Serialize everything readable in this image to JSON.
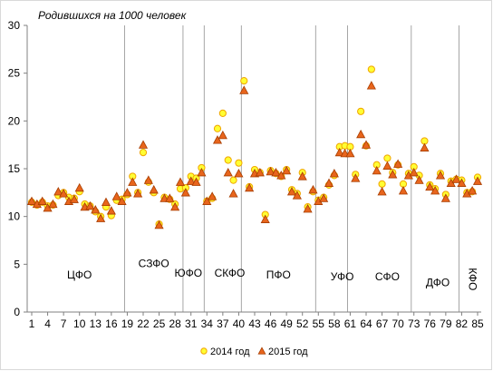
{
  "chart_data": {
    "type": "scatter",
    "title": "",
    "ylabel": "Родившихся на 1000 человек",
    "xlabel": "",
    "xlim": [
      1,
      85
    ],
    "ylim": [
      0,
      30
    ],
    "grid": false,
    "legend_placement": "bottom",
    "y_ticks": [
      "0",
      "5",
      "10",
      "15",
      "20",
      "25",
      "30"
    ],
    "x_ticks": [
      "1",
      "4",
      "7",
      "10",
      "13",
      "16",
      "19",
      "22",
      "25",
      "28",
      "31",
      "34",
      "37",
      "40",
      "43",
      "46",
      "49",
      "52",
      "55",
      "58",
      "61",
      "64",
      "67",
      "70",
      "73",
      "76",
      "79",
      "82",
      "85"
    ],
    "district_boundaries": [
      18.5,
      29.5,
      33.5,
      40.5,
      54.5,
      60.5,
      72.5,
      81.5
    ],
    "districts": [
      {
        "name": "ЦФО",
        "x": 10,
        "y": 3.5
      },
      {
        "name": "СЗФО",
        "x": 24,
        "y": 4.7
      },
      {
        "name": "ЮФО",
        "x": 30.5,
        "y": 3.7
      },
      {
        "name": "СКФО",
        "x": 38.3,
        "y": 3.7
      },
      {
        "name": "ПФО",
        "x": 47.5,
        "y": 3.5
      },
      {
        "name": "УФО",
        "x": 59.5,
        "y": 3.3
      },
      {
        "name": "СФО",
        "x": 68,
        "y": 3.3
      },
      {
        "name": "ДФО",
        "x": 77.5,
        "y": 2.7
      },
      {
        "name": "КФО",
        "x": 84.1,
        "y": 3.2,
        "vertical": true
      }
    ],
    "series": [
      {
        "name": "2014 год",
        "marker": "circle",
        "fill": "#ffff33",
        "stroke": "#f0a500",
        "values": [
          11.5,
          11.2,
          11.5,
          11.1,
          11.2,
          12.2,
          12.5,
          12.0,
          11.9,
          12.6,
          11.3,
          11.1,
          10.5,
          10.0,
          11.0,
          10.1,
          11.7,
          11.8,
          12.3,
          14.2,
          12.5,
          16.7,
          13.6,
          12.5,
          9.2,
          12.0,
          11.8,
          11.3,
          12.9,
          13.0,
          14.2,
          14.0,
          15.1,
          11.6,
          11.9,
          19.2,
          20.8,
          15.9,
          13.8,
          15.6,
          24.2,
          13.1,
          14.9,
          14.6,
          10.2,
          14.8,
          14.5,
          14.2,
          14.9,
          12.8,
          12.4,
          14.6,
          11.0,
          12.6,
          11.7,
          12.0,
          13.3,
          14.3,
          17.3,
          17.4,
          17.3,
          14.4,
          21.0,
          17.4,
          25.4,
          15.4,
          13.4,
          16.1,
          14.6,
          15.4,
          13.4,
          14.5,
          15.2,
          14.3,
          17.9,
          13.3,
          12.9,
          14.5,
          12.3,
          13.7,
          13.9,
          13.8,
          12.5,
          12.6,
          14.1
        ]
      },
      {
        "name": "2015 год",
        "marker": "triangle",
        "fill": "#e8651c",
        "stroke": "#a73d00",
        "values": [
          11.6,
          11.3,
          11.6,
          10.9,
          11.3,
          12.6,
          12.4,
          11.6,
          11.8,
          13.0,
          11.0,
          11.1,
          10.7,
          9.8,
          11.5,
          10.6,
          12.1,
          11.6,
          12.5,
          13.6,
          12.4,
          17.5,
          13.8,
          12.8,
          9.1,
          11.9,
          11.9,
          11.0,
          13.6,
          12.5,
          13.7,
          13.6,
          14.6,
          11.6,
          12.1,
          18.0,
          18.5,
          14.6,
          12.4,
          14.5,
          23.2,
          13.0,
          14.5,
          14.6,
          9.7,
          14.7,
          14.6,
          14.3,
          14.8,
          12.6,
          12.2,
          14.2,
          10.8,
          12.8,
          11.6,
          11.9,
          13.5,
          14.5,
          16.7,
          16.6,
          16.6,
          14.0,
          18.6,
          17.5,
          23.7,
          14.8,
          12.6,
          15.3,
          14.4,
          15.5,
          12.7,
          14.3,
          14.6,
          13.8,
          17.2,
          13.1,
          12.7,
          14.3,
          11.9,
          13.5,
          13.9,
          13.5,
          12.4,
          12.7,
          13.7
        ]
      }
    ]
  }
}
